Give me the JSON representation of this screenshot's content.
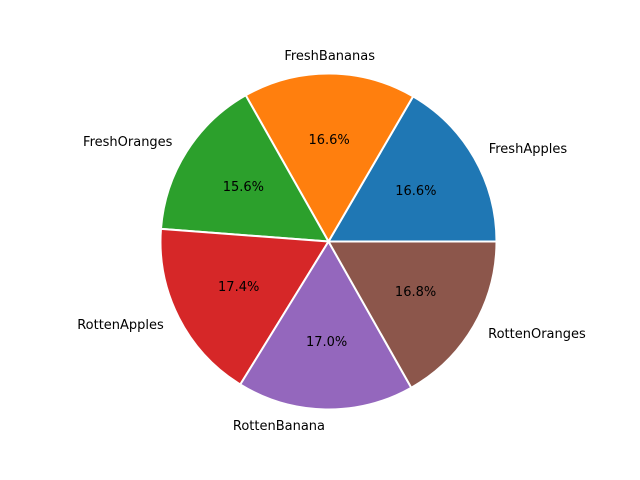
{
  "chart_data": {
    "type": "pie",
    "title": "",
    "categories": [
      "FreshApples",
      "FreshBananas",
      "FreshOranges",
      "RottenApples",
      "RottenBanana",
      "RottenOranges"
    ],
    "values": [
      16.6,
      16.6,
      15.6,
      17.4,
      17.0,
      16.8
    ],
    "value_labels": [
      "16.6%",
      "16.6%",
      "15.6%",
      "17.4%",
      "17.0%",
      "16.8%"
    ],
    "colors": [
      "#1f77b4",
      "#ff7f0e",
      "#2ca02c",
      "#d62728",
      "#9467bd",
      "#8c564b"
    ],
    "start_angle_deg": 0,
    "direction": "counterclockwise",
    "edge_color": "#ffffff",
    "legend": "none"
  }
}
